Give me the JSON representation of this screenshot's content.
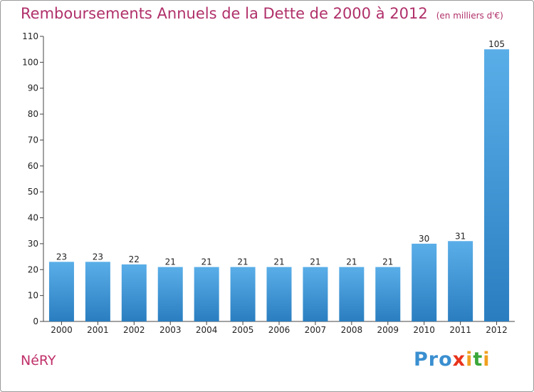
{
  "header": {
    "title": "Remboursements Annuels de la Dette de 2000 à 2012",
    "unit": "(en milliers d'€)"
  },
  "commune": "NéRY",
  "logo": {
    "text": "Proxiti",
    "l1": "Pro",
    "l2": "x",
    "l3": "i",
    "l4": "t",
    "l5": "i"
  },
  "colors": {
    "title": "#b0306a",
    "bar_top": "#5aaee8",
    "bar_bottom": "#2a7ec0",
    "axis": "#444444"
  },
  "chart_data": {
    "type": "bar",
    "title": "Remboursements Annuels de la Dette de 2000 à 2012",
    "categories": [
      "2000",
      "2001",
      "2002",
      "2003",
      "2004",
      "2005",
      "2006",
      "2007",
      "2008",
      "2009",
      "2010",
      "2011",
      "2012"
    ],
    "values": [
      23,
      23,
      22,
      21,
      21,
      21,
      21,
      21,
      21,
      21,
      30,
      31,
      105
    ],
    "value_labels": [
      "23",
      "23",
      "22",
      "21",
      "21",
      "21",
      "21",
      "21",
      "21",
      "21",
      "30",
      "31",
      "105"
    ],
    "yticks": [
      "0",
      "10",
      "20",
      "30",
      "40",
      "50",
      "60",
      "70",
      "80",
      "90",
      "100",
      "110"
    ],
    "ylim": [
      0,
      110
    ],
    "grid": false,
    "xlabel": "",
    "ylabel": ""
  }
}
